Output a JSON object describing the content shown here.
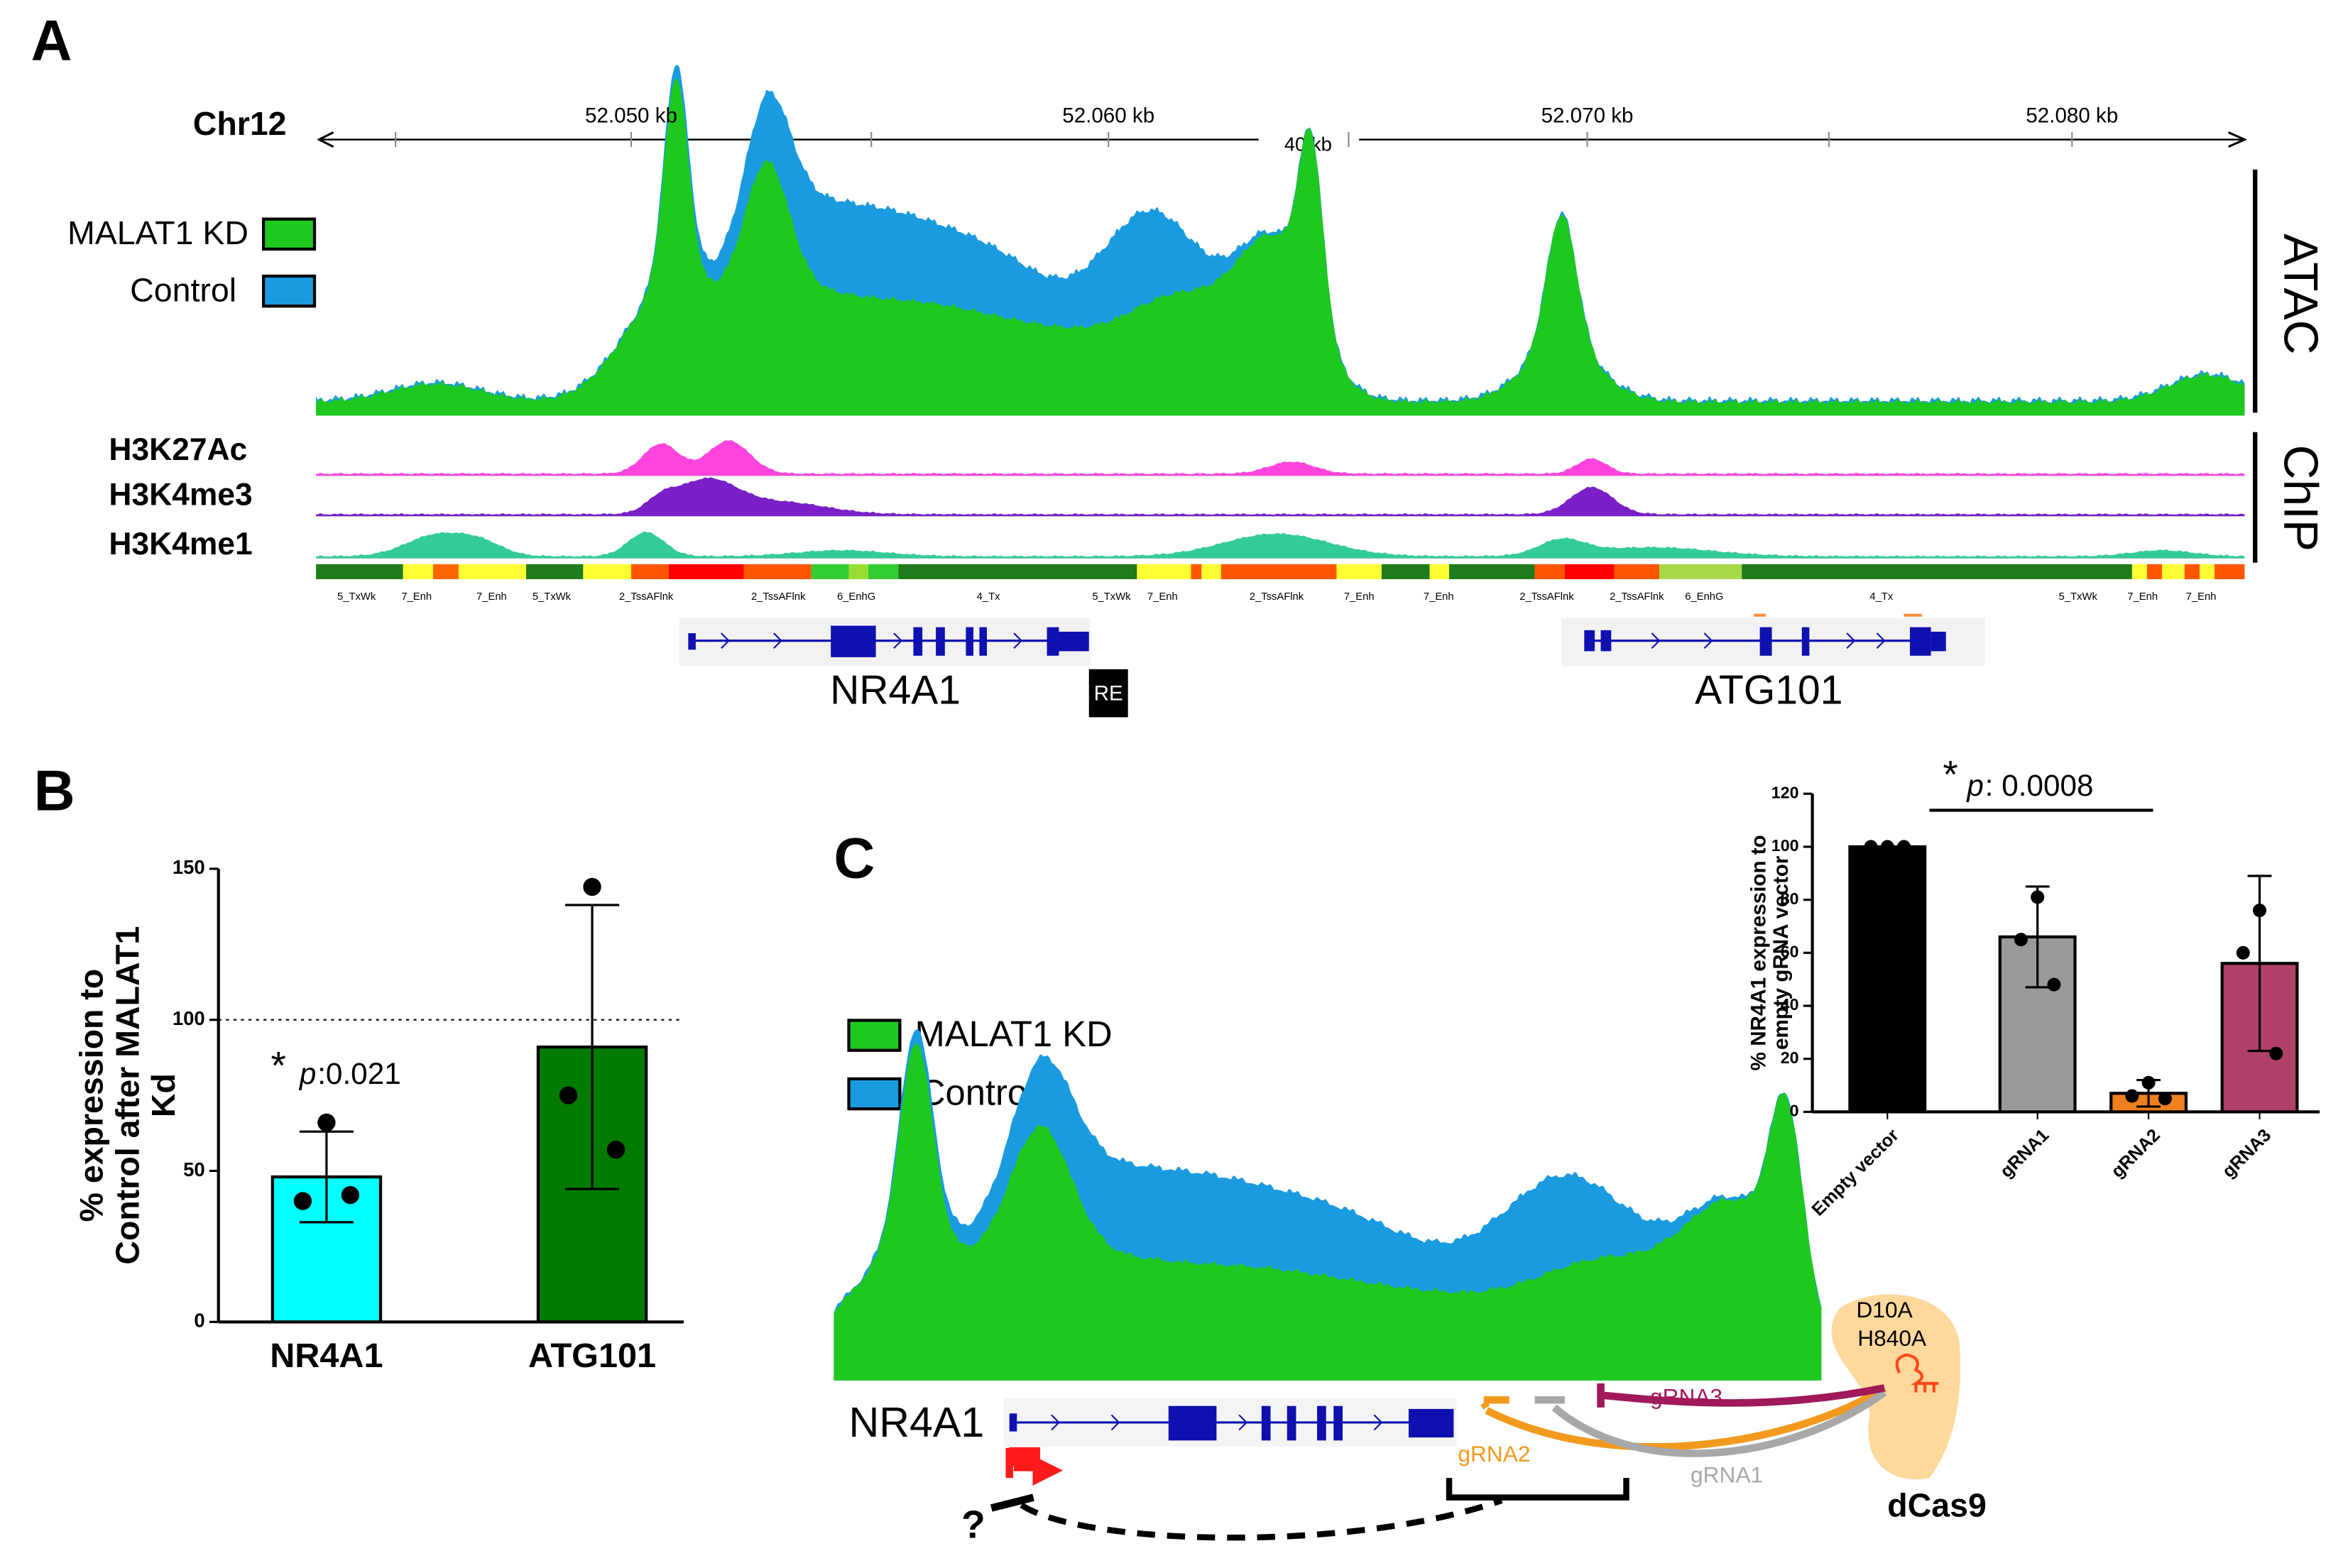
{
  "panel_a": {
    "letter": "A",
    "chromosome": "Chr12",
    "coordinates": [
      "52.050 kb",
      "52.060 kb",
      "52.070 kb",
      "52.080 kb"
    ],
    "span": "40 kb",
    "legend": [
      "MALAT1 KD",
      "Control"
    ],
    "track_groups": [
      "ATAC",
      "ChIP"
    ],
    "chip_tracks": [
      "H3K27Ac",
      "H3K4me3",
      "H3K4me1"
    ],
    "chromatin_states": [
      "5_TxWk",
      "7_Enh",
      "7_Enh",
      "5_TxWk",
      "2_TssAFlnk",
      "2_TssAFlnk",
      "6_EnhG",
      "4_Tx",
      "5_TxWk",
      "7_Enh",
      "2_TssAFlnk",
      "7_Enh",
      "7_Enh",
      "2_TssAFlnk",
      "2_TssAFlnk",
      "6_EnhG",
      "4_Tx",
      "5_TxWk",
      "7_Enh",
      "7_Enh"
    ],
    "genes": [
      "NR4A1",
      "ATG101"
    ],
    "element": "RE"
  },
  "panel_b": {
    "letter": "B"
  },
  "panel_c": {
    "letter": "C",
    "legend": [
      "MALAT1 KD",
      "Control"
    ],
    "gene": "NR4A1",
    "guides": [
      "gRNA2",
      "gRNA3",
      "gRNA1"
    ],
    "mutations": [
      "D10A",
      "H840A"
    ],
    "protein": "dCas9",
    "question": "?"
  },
  "chart_data": [
    {
      "type": "bar",
      "y_label_lines": [
        "% expression to",
        "Control after MALAT1",
        "Kd"
      ],
      "categories": [
        "NR4A1",
        "ATG101"
      ],
      "values": [
        48,
        91
      ],
      "errors": [
        15,
        47
      ],
      "points": [
        [
          66,
          40,
          42
        ],
        [
          144,
          75,
          57
        ]
      ],
      "colors": [
        "#00ffff",
        "#007a00"
      ],
      "ylim": [
        0,
        150
      ],
      "yticks": [
        0,
        50,
        100,
        150
      ],
      "reference_line": 100,
      "star": "*",
      "p_label": "p",
      "p_value": ":0.021"
    },
    {
      "type": "bar",
      "y_label_lines": [
        "% NR4A1 expression to",
        "empty gRNA vector"
      ],
      "categories": [
        "Empty vector",
        "gRNA1",
        "gRNA2",
        "gRNA3"
      ],
      "values": [
        100,
        66,
        7,
        56
      ],
      "errors": [
        0,
        19,
        5,
        33
      ],
      "points": [
        [
          100,
          100,
          100
        ],
        [
          81,
          65,
          48
        ],
        [
          11,
          6,
          5
        ],
        [
          76,
          60,
          22
        ]
      ],
      "colors": [
        "#000000",
        "#999999",
        "#f07f1f",
        "#b0406a"
      ],
      "ylim": [
        0,
        120
      ],
      "yticks": [
        0,
        20,
        40,
        60,
        80,
        100,
        120
      ],
      "star": "*",
      "p_label": "p",
      "p_value": ": 0.0008"
    }
  ]
}
